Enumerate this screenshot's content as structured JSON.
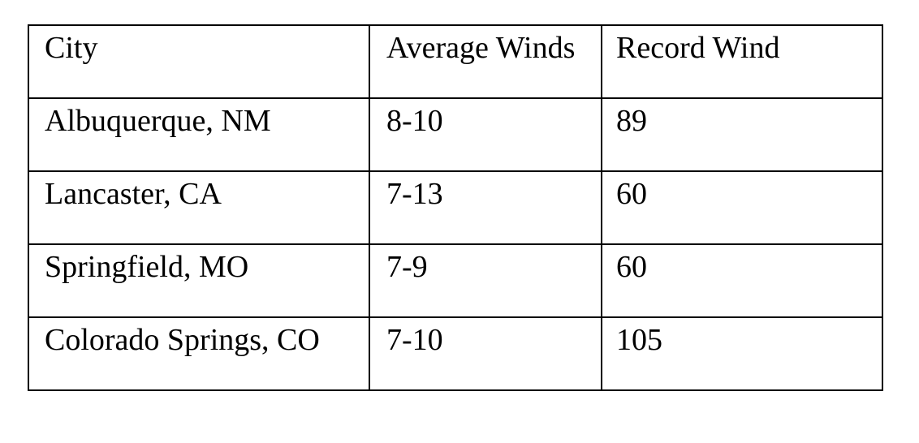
{
  "table": {
    "headers": [
      "City",
      "Average Winds",
      "Record Wind"
    ],
    "rows": [
      [
        "Albuquerque, NM",
        "8-10",
        "89"
      ],
      [
        "Lancaster, CA",
        "7-13",
        "60"
      ],
      [
        "Springfield, MO",
        "7-9",
        "60"
      ],
      [
        "Colorado Springs, CO",
        "7-10",
        "105"
      ]
    ]
  }
}
